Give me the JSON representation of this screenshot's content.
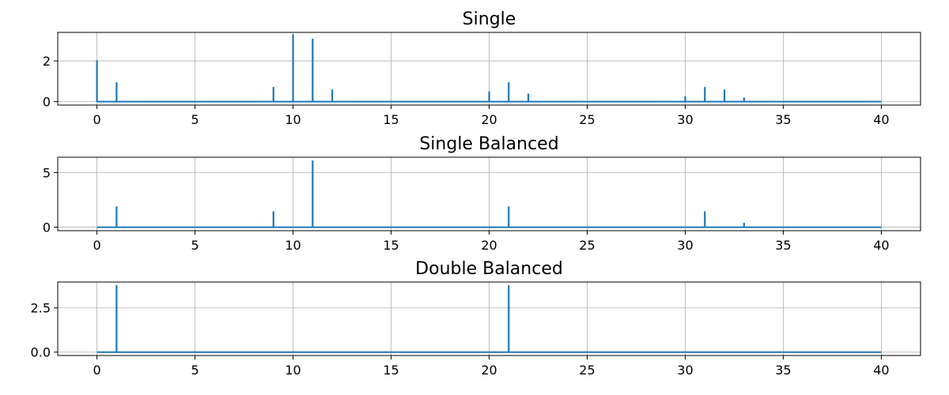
{
  "figure": {
    "line_color": "#1f77b4",
    "grid_color": "#b0b0b0"
  },
  "chart_data": [
    {
      "type": "line",
      "title": "Single",
      "xlabel": "",
      "ylabel": "",
      "xlim": [
        -2,
        42
      ],
      "ylim": [
        -0.17,
        3.4
      ],
      "xticks": [
        0,
        5,
        10,
        15,
        20,
        25,
        30,
        35,
        40
      ],
      "yticks": [
        0,
        2
      ],
      "ytick_labels": [
        "0",
        "2"
      ],
      "grid": true,
      "spikes": [
        {
          "x": 0,
          "y": 2.03
        },
        {
          "x": 1,
          "y": 0.95
        },
        {
          "x": 9,
          "y": 0.72
        },
        {
          "x": 10,
          "y": 3.31
        },
        {
          "x": 11,
          "y": 3.09
        },
        {
          "x": 12,
          "y": 0.59
        },
        {
          "x": 20,
          "y": 0.5
        },
        {
          "x": 21,
          "y": 0.95
        },
        {
          "x": 22,
          "y": 0.39
        },
        {
          "x": 30,
          "y": 0.26
        },
        {
          "x": 31,
          "y": 0.72
        },
        {
          "x": 32,
          "y": 0.59
        },
        {
          "x": 33,
          "y": 0.2
        }
      ]
    },
    {
      "type": "line",
      "title": "Single Balanced",
      "xlabel": "",
      "ylabel": "",
      "xlim": [
        -2,
        42
      ],
      "ylim": [
        -0.32,
        6.4
      ],
      "xticks": [
        0,
        5,
        10,
        15,
        20,
        25,
        30,
        35,
        40
      ],
      "yticks": [
        0,
        5
      ],
      "ytick_labels": [
        "0",
        "5"
      ],
      "grid": true,
      "spikes": [
        {
          "x": 1,
          "y": 1.9
        },
        {
          "x": 9,
          "y": 1.45
        },
        {
          "x": 11,
          "y": 6.1
        },
        {
          "x": 21,
          "y": 1.9
        },
        {
          "x": 31,
          "y": 1.45
        },
        {
          "x": 33,
          "y": 0.4
        }
      ]
    },
    {
      "type": "line",
      "title": "Double Balanced",
      "xlabel": "",
      "ylabel": "",
      "xlim": [
        -2,
        42
      ],
      "ylim": [
        -0.19,
        3.96
      ],
      "xticks": [
        0,
        5,
        10,
        15,
        20,
        25,
        30,
        35,
        40
      ],
      "yticks": [
        0,
        2.5
      ],
      "ytick_labels": [
        "0.0",
        "2.5"
      ],
      "grid": true,
      "spikes": [
        {
          "x": 1,
          "y": 3.78
        },
        {
          "x": 21,
          "y": 3.78
        }
      ]
    }
  ]
}
